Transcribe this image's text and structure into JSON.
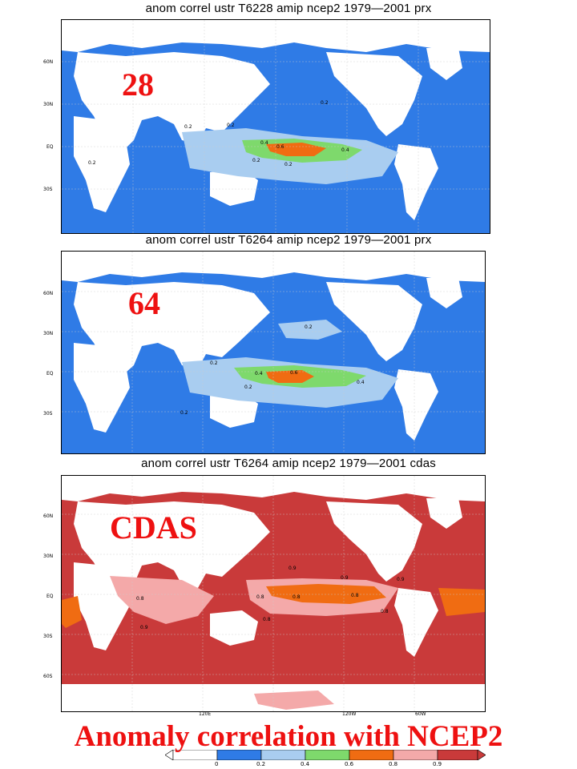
{
  "colors": {
    "ocean_low": "#2f7be6",
    "contour_0_2": "#a9cdf0",
    "contour_0_4": "#7ed96c",
    "contour_0_6": "#f06c12",
    "cdas_fill": "#c93a3a",
    "cdas_0_8": "#f4a9a9",
    "caption_red": "#ee1111",
    "land": "#ffffff"
  },
  "panels": [
    {
      "title": "anom correl ustr T6228 amip ncep2 1979—2001 prx",
      "overlay_label": "28",
      "lat_labels": [
        "60N",
        "30N",
        "EQ",
        "30S"
      ],
      "contour_labels": [
        "0.2",
        "0.2",
        "0.2",
        "0.4",
        "0.6",
        "0.4",
        "0.2",
        "0.2",
        "0.2"
      ]
    },
    {
      "title": "anom correl ustr T6264 amip ncep2 1979—2001 prx",
      "overlay_label": "64",
      "lat_labels": [
        "60N",
        "30N",
        "EQ",
        "30S"
      ],
      "contour_labels": [
        "0.2",
        "0.2",
        "0.4",
        "0.6",
        "0.4",
        "0.2",
        "0.2"
      ]
    },
    {
      "title": "anom correl ustr T6264 amip ncep2 1979—2001 cdas",
      "overlay_label": "CDAS",
      "lat_labels": [
        "60N",
        "30N",
        "EQ",
        "30S",
        "60S"
      ],
      "lon_labels": [
        "120E",
        "120W",
        "60W"
      ],
      "contour_labels": [
        "0.9",
        "0.8",
        "0.9",
        "0.9",
        "0.8",
        "0.8",
        "0.9",
        "0.8",
        "0.8",
        "0.8"
      ]
    }
  ],
  "caption": "Anomaly correlation with NCEP2",
  "legend": {
    "ticks": [
      "0",
      "0.2",
      "0.4",
      "0.6",
      "0.8",
      "0.9"
    ],
    "colors": [
      "#ffffff",
      "#2f7be6",
      "#a9cdf0",
      "#7ed96c",
      "#f06c12",
      "#f4a9a9",
      "#c93a3a"
    ]
  }
}
